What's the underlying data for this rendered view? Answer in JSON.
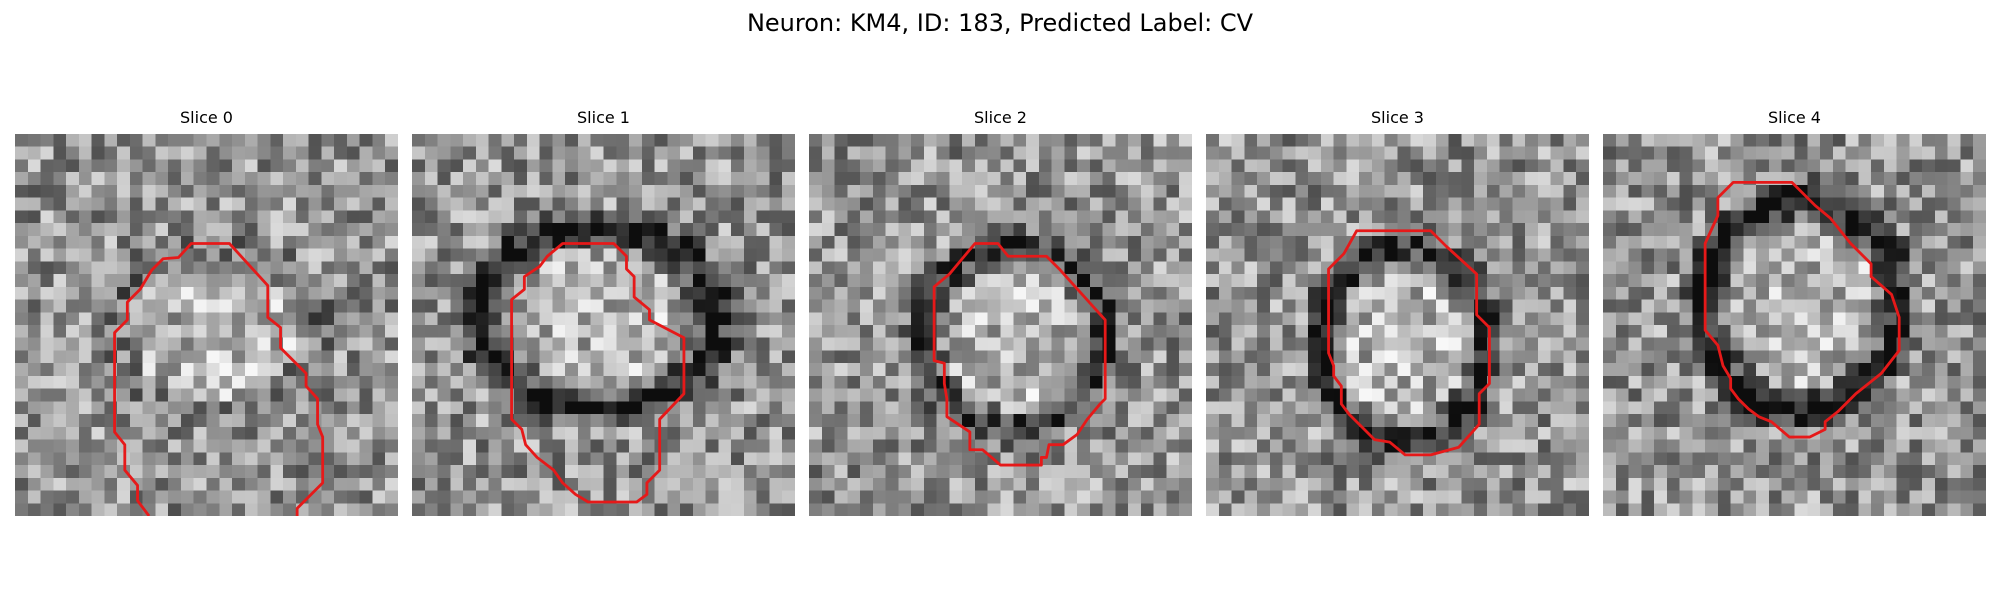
{
  "title": "Neuron: KM4, ID: 183, Predicted Label: CV",
  "contour_color": "#e61919",
  "panels": [
    {
      "label": "Slice 0"
    },
    {
      "label": "Slice 1"
    },
    {
      "label": "Slice 2"
    },
    {
      "label": "Slice 3"
    },
    {
      "label": "Slice 4"
    }
  ]
}
